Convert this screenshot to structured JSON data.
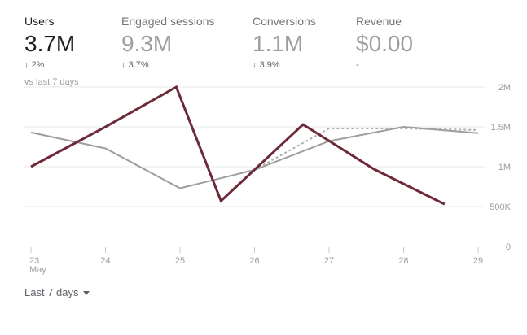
{
  "metrics": [
    {
      "label": "Users",
      "value": "3.7M",
      "change": "2%",
      "arrow": "↓",
      "active": true
    },
    {
      "label": "Engaged sessions",
      "value": "9.3M",
      "change": "3.7%",
      "arrow": "↓",
      "active": false
    },
    {
      "label": "Conversions",
      "value": "1.1M",
      "change": "3.9%",
      "arrow": "↓",
      "active": false
    },
    {
      "label": "Revenue",
      "value": "$0.00",
      "change": "-",
      "arrow": "",
      "active": false
    }
  ],
  "comparison_label": "vs last 7 days",
  "date_range": {
    "label": "Last 7 days",
    "icon": "caret-down-icon"
  },
  "colors": {
    "current": "#6d2a39",
    "previous": "#9e9e9e",
    "grid": "#e8e8e8"
  },
  "chart_data": {
    "type": "line",
    "x": [
      "23",
      "24",
      "25",
      "26",
      "27",
      "28",
      "29"
    ],
    "x_month_label": "May",
    "y_ticks": [
      "0",
      "500K",
      "1M",
      "1.5M",
      "2M"
    ],
    "ylim": [
      0,
      2000000
    ],
    "series": [
      {
        "key": "current",
        "x": [
          0,
          1,
          1.95,
          2.55,
          3.65,
          4.6,
          5.55
        ],
        "values": [
          1000000,
          1500000,
          2000000,
          570000,
          1530000,
          970000,
          530000
        ],
        "style": "solid"
      },
      {
        "key": "previous",
        "x": [
          0,
          1,
          2,
          3,
          4,
          5,
          6
        ],
        "values": [
          1430000,
          1230000,
          730000,
          960000,
          1320000,
          1500000,
          1420000
        ],
        "style": "solid"
      },
      {
        "key": "previous-dashed",
        "x": [
          3,
          4,
          5,
          6
        ],
        "values": [
          960000,
          1480000,
          1480000,
          1460000
        ],
        "style": "dashed"
      }
    ]
  }
}
